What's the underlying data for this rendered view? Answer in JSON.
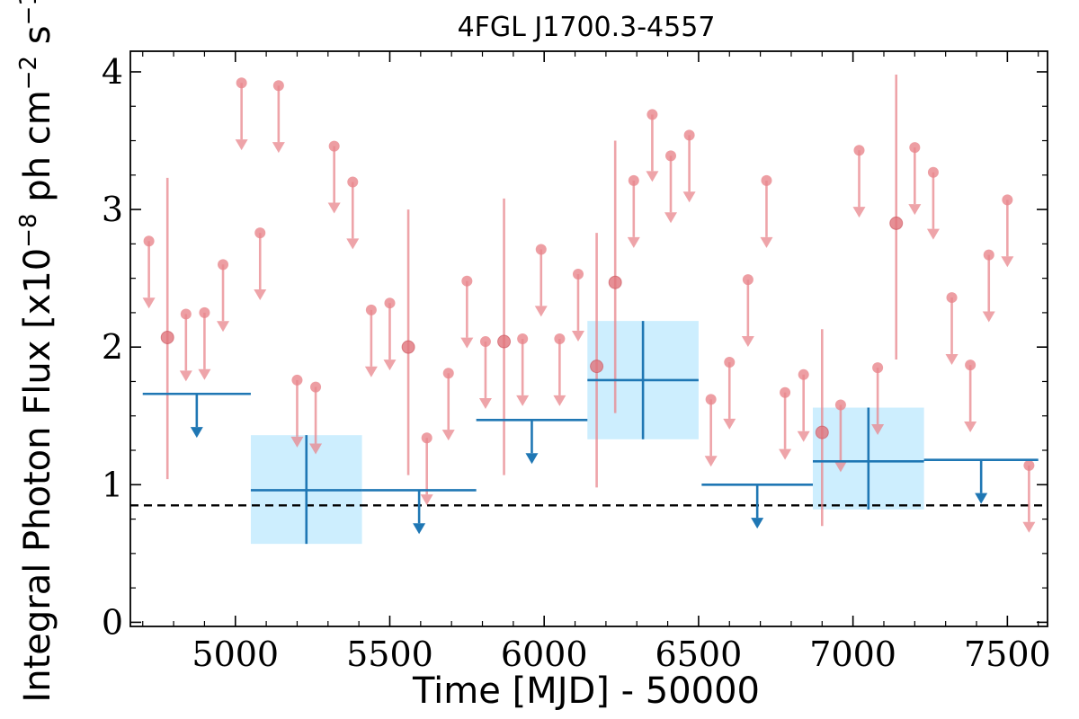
{
  "chart_data": {
    "type": "scatter",
    "title": "4FGL J1700.3-4557",
    "xlabel": "Time [MJD] - 50000",
    "ylabel": "Integral Photon Flux [x10",
    "ylabel_exp1": "−8",
    "ylabel_mid": " ph cm",
    "ylabel_exp2": "−2",
    "ylabel_mid2": " s",
    "ylabel_exp3": "−1",
    "ylabel_end": "]",
    "xlim": [
      4660,
      7630
    ],
    "ylim": [
      -0.03,
      4.15
    ],
    "xticks": [
      {
        "value": 5000,
        "label": "5000"
      },
      {
        "value": 5500,
        "label": "5500"
      },
      {
        "value": 6000,
        "label": "6000"
      },
      {
        "value": 6500,
        "label": "6500"
      },
      {
        "value": 7000,
        "label": "7000"
      },
      {
        "value": 7500,
        "label": "7500"
      }
    ],
    "yticks": [
      {
        "value": 0,
        "label": "0"
      },
      {
        "value": 1,
        "label": "1"
      },
      {
        "value": 2,
        "label": "2"
      },
      {
        "value": 3,
        "label": "3"
      },
      {
        "value": 4,
        "label": "4"
      }
    ],
    "reference_line": {
      "y": 0.85,
      "style": "dashed",
      "color": "#000000"
    },
    "colors": {
      "short_bins": "#e8868c",
      "long_bins": "#1f77b4",
      "long_bins_box": "#cdeefe"
    },
    "short_bins": {
      "upper_limits": [
        {
          "x": 4720,
          "y": 2.77
        },
        {
          "x": 4840,
          "y": 2.24
        },
        {
          "x": 4900,
          "y": 2.25
        },
        {
          "x": 4960,
          "y": 2.6
        },
        {
          "x": 5020,
          "y": 3.92
        },
        {
          "x": 5080,
          "y": 2.83
        },
        {
          "x": 5140,
          "y": 3.9
        },
        {
          "x": 5200,
          "y": 1.76
        },
        {
          "x": 5260,
          "y": 1.71
        },
        {
          "x": 5320,
          "y": 3.46
        },
        {
          "x": 5380,
          "y": 3.2
        },
        {
          "x": 5440,
          "y": 2.27
        },
        {
          "x": 5500,
          "y": 2.32
        },
        {
          "x": 5620,
          "y": 1.34
        },
        {
          "x": 5690,
          "y": 1.81
        },
        {
          "x": 5750,
          "y": 2.48
        },
        {
          "x": 5810,
          "y": 2.04
        },
        {
          "x": 5930,
          "y": 2.06
        },
        {
          "x": 5990,
          "y": 2.71
        },
        {
          "x": 6050,
          "y": 2.06
        },
        {
          "x": 6110,
          "y": 2.53
        },
        {
          "x": 6290,
          "y": 3.21
        },
        {
          "x": 6350,
          "y": 3.69
        },
        {
          "x": 6410,
          "y": 3.39
        },
        {
          "x": 6470,
          "y": 3.54
        },
        {
          "x": 6540,
          "y": 1.62
        },
        {
          "x": 6600,
          "y": 1.89
        },
        {
          "x": 6660,
          "y": 2.49
        },
        {
          "x": 6720,
          "y": 3.21
        },
        {
          "x": 6780,
          "y": 1.67
        },
        {
          "x": 6840,
          "y": 1.8
        },
        {
          "x": 6960,
          "y": 1.58
        },
        {
          "x": 7020,
          "y": 3.43
        },
        {
          "x": 7080,
          "y": 1.85
        },
        {
          "x": 7200,
          "y": 3.45
        },
        {
          "x": 7260,
          "y": 3.27
        },
        {
          "x": 7320,
          "y": 2.36
        },
        {
          "x": 7380,
          "y": 1.87
        },
        {
          "x": 7440,
          "y": 2.67
        },
        {
          "x": 7500,
          "y": 3.07
        },
        {
          "x": 7570,
          "y": 1.14
        }
      ],
      "detections": [
        {
          "x": 4780,
          "y": 2.07,
          "err_low": 1.04,
          "err_high": 3.23
        },
        {
          "x": 5560,
          "y": 2.0,
          "err_low": 1.07,
          "err_high": 3.0
        },
        {
          "x": 5870,
          "y": 2.04,
          "err_low": 1.07,
          "err_high": 3.08
        },
        {
          "x": 6170,
          "y": 1.86,
          "err_low": 0.98,
          "err_high": 2.83
        },
        {
          "x": 6230,
          "y": 2.47,
          "err_low": 1.52,
          "err_high": 3.5
        },
        {
          "x": 6900,
          "y": 1.38,
          "err_low": 0.7,
          "err_high": 2.13
        },
        {
          "x": 7140,
          "y": 2.9,
          "err_low": 1.91,
          "err_high": 3.98
        }
      ]
    },
    "long_bins": {
      "upper_limits": [
        {
          "x_start": 4700,
          "x_end": 5050,
          "y": 1.66
        },
        {
          "x_start": 5410,
          "x_end": 5780,
          "y": 0.96
        },
        {
          "x_start": 5780,
          "x_end": 6140,
          "y": 1.47
        },
        {
          "x_start": 6510,
          "x_end": 6870,
          "y": 1.0
        },
        {
          "x_start": 7230,
          "x_end": 7600,
          "y": 1.18
        }
      ],
      "detections": [
        {
          "x": 5230,
          "x_start": 5050,
          "x_end": 5410,
          "y": 0.96,
          "y_low": 0.57,
          "y_high": 1.36
        },
        {
          "x": 6320,
          "x_start": 6140,
          "x_end": 6500,
          "y": 1.76,
          "y_low": 1.33,
          "y_high": 2.19
        },
        {
          "x": 7050,
          "x_start": 6870,
          "x_end": 7230,
          "y": 1.17,
          "y_low": 0.82,
          "y_high": 1.56
        }
      ]
    }
  }
}
